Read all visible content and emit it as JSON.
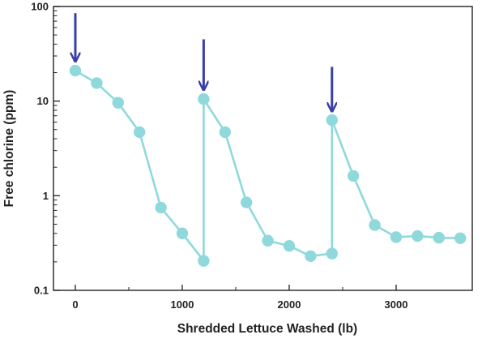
{
  "chart_data": {
    "type": "line",
    "xlabel": "Shredded Lettuce Washed (lb)",
    "ylabel": "Free chlorine (ppm)",
    "xlim": [
      -100,
      3800
    ],
    "ylim": [
      0.1,
      100
    ],
    "y_scale": "log",
    "x_ticks": [
      0,
      1000,
      2000,
      3000
    ],
    "y_ticks": [
      0.1,
      1,
      10,
      100
    ],
    "x_tick_labels": [
      "0",
      "1000",
      "2000",
      "3000"
    ],
    "y_tick_labels": [
      "0.1",
      "1",
      "10",
      "100"
    ],
    "grid": false,
    "series": [
      {
        "points": [
          [
            0,
            21
          ],
          [
            200,
            15.5
          ],
          [
            400,
            9.6
          ],
          [
            600,
            4.7
          ],
          [
            800,
            0.75
          ],
          [
            1000,
            0.4
          ],
          [
            1200,
            0.205
          ],
          [
            1200,
            10.5
          ],
          [
            1400,
            4.7
          ],
          [
            1600,
            0.85
          ],
          [
            1800,
            0.335
          ],
          [
            2000,
            0.295
          ],
          [
            2200,
            0.23
          ],
          [
            2400,
            0.245
          ],
          [
            2400,
            6.3
          ],
          [
            2600,
            1.62
          ],
          [
            2800,
            0.49
          ],
          [
            3000,
            0.365
          ],
          [
            3200,
            0.375
          ],
          [
            3400,
            0.36
          ],
          [
            3600,
            0.355
          ]
        ]
      }
    ],
    "annotations": [
      {
        "type": "arrow",
        "x": 0,
        "y_from": 85,
        "y_to": 27
      },
      {
        "type": "arrow",
        "x": 1200,
        "y_from": 45,
        "y_to": 13.5
      },
      {
        "type": "arrow",
        "x": 2400,
        "y_from": 23,
        "y_to": 8.0
      }
    ],
    "colors": {
      "series": "#8fd9dc",
      "arrows": "#3a3fa8",
      "axis": "#222222",
      "frame": "#222222"
    }
  }
}
